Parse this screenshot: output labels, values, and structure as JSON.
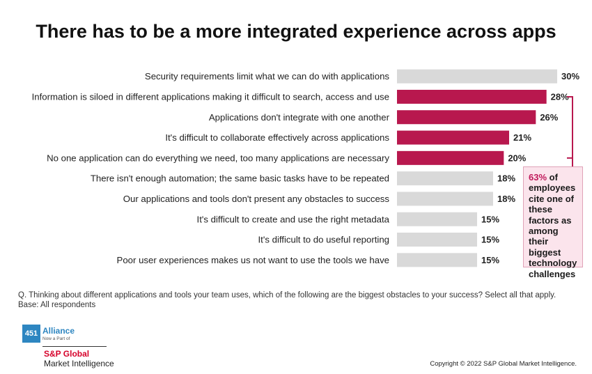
{
  "title": "There has to be a more integrated experience across apps",
  "chart_data": {
    "type": "bar",
    "orientation": "horizontal",
    "unit": "%",
    "xlim": [
      0,
      30
    ],
    "categories": [
      "Security requirements limit what we can do with applications",
      "Information is siloed in different applications making it difficult to search, access and use",
      "Applications don't integrate with one another",
      "It's difficult to collaborate effectively across applications",
      "No one application can do everything we need, too many applications are necessary",
      "There isn't enough automation; the same basic tasks have to be repeated",
      "Our applications and tools don't present any obstacles to success",
      "It's difficult to create and use the right metadata",
      "It's difficult to do useful reporting",
      "Poor user experiences makes us not want to use the tools we have"
    ],
    "values": [
      30,
      28,
      26,
      21,
      20,
      18,
      18,
      15,
      15,
      15
    ],
    "value_labels": [
      "30%",
      "28%",
      "26%",
      "21%",
      "20%",
      "18%",
      "18%",
      "15%",
      "15%",
      "15%"
    ],
    "highlighted": [
      false,
      true,
      true,
      true,
      true,
      false,
      false,
      false,
      false,
      false
    ],
    "grid": false
  },
  "colors": {
    "highlight": "#b8184e",
    "default": "#d9d9d9",
    "bracket": "#b8184e",
    "callout_bg": "#fbe4ec",
    "callout_accent": "#c0195a"
  },
  "callout": {
    "percent": "63%",
    "text": " of employees cite one of these factors as among their biggest technology challenges"
  },
  "footnote": {
    "question": "Q. Thinking about different applications and tools your team uses, which of the following are the biggest obstacles to your success? Select all that apply.",
    "base": "Base: All respondents"
  },
  "logo": {
    "badge": "451",
    "alliance": "Alliance",
    "part_of": "Now a Part of",
    "brand": "S&P Global",
    "division": "Market Intelligence"
  },
  "copyright": "Copyright © 2022 S&P Global Market Intelligence."
}
